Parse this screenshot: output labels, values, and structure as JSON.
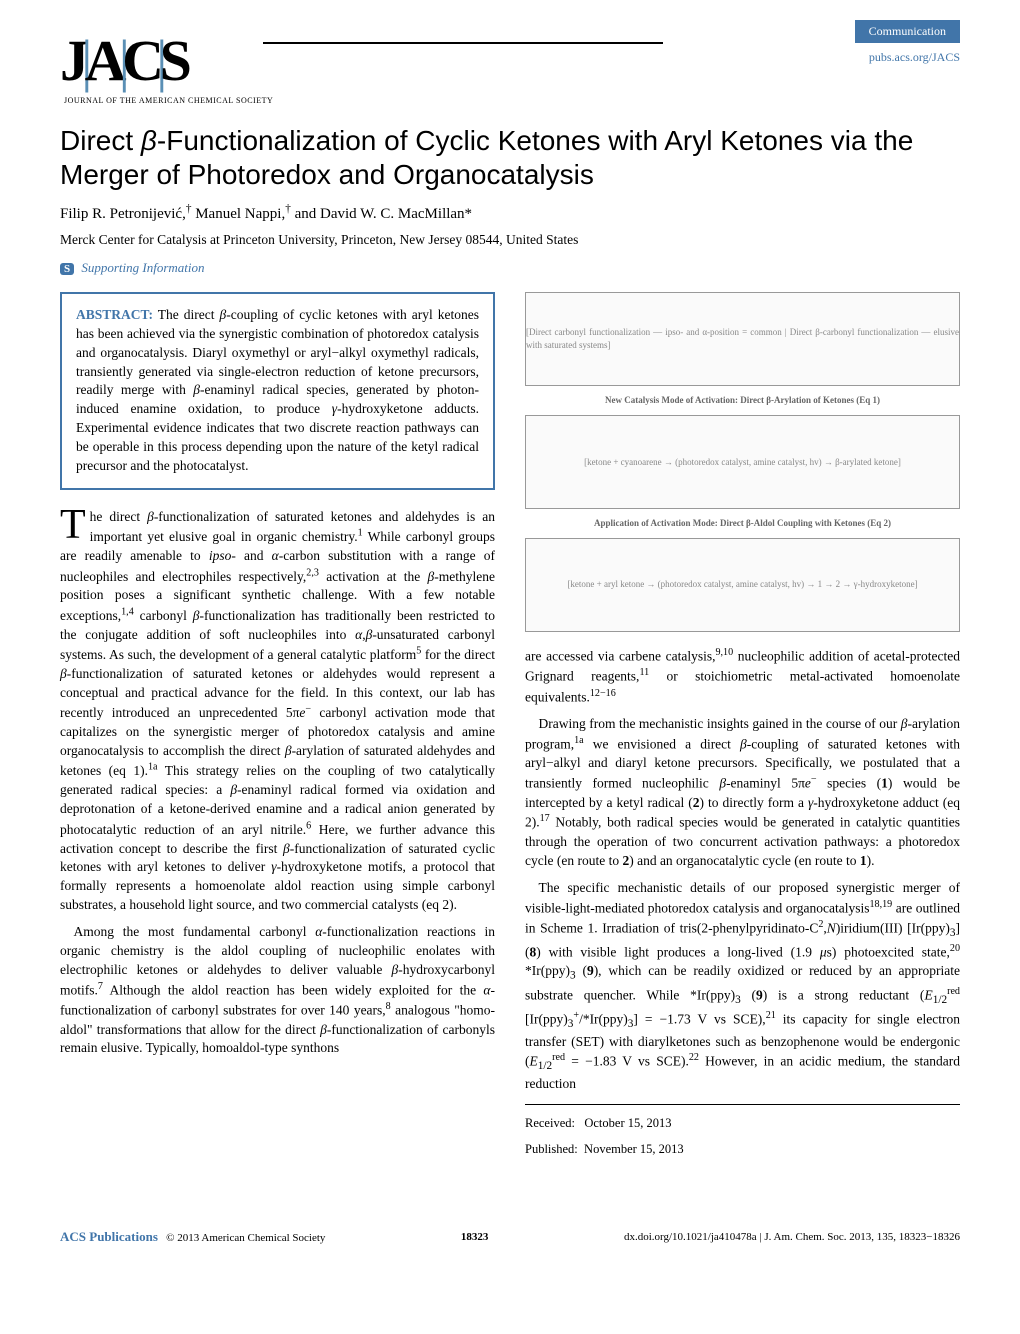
{
  "header": {
    "journal_initials": "JACS",
    "journal_subtitle": "JOURNAL OF THE AMERICAN CHEMICAL SOCIETY",
    "badge": "Communication",
    "pubs_link": "pubs.acs.org/JACS"
  },
  "title_html": "Direct <i>β</i>-Functionalization of Cyclic Ketones with Aryl Ketones via the Merger of Photoredox and Organocatalysis",
  "authors_html": "Filip R. Petronijević,<sup>†</sup> Manuel Nappi,<sup>†</sup> and David W. C. MacMillan*",
  "affiliation": "Merck Center for Catalysis at Princeton University, Princeton, New Jersey 08544, United States",
  "si_label": "Supporting Information",
  "abstract": {
    "label": "ABSTRACT:",
    "text_html": "The direct <i>β</i>-coupling of cyclic ketones with aryl ketones has been achieved via the synergistic combination of photoredox catalysis and organocatalysis. Diaryl oxymethyl or aryl−alkyl oxymethyl radicals, transiently generated via single-electron reduction of ketone precursors, readily merge with <i>β</i>-enaminyl radical species, generated by photon-induced enamine oxidation, to produce <i>γ</i>-hydroxyketone adducts. Experimental evidence indicates that two discrete reaction pathways can be operable in this process depending upon the nature of the ketyl radical precursor and the photocatalyst."
  },
  "body": {
    "left_p1_html": "he direct <i>β</i>-functionalization of saturated ketones and aldehydes is an important yet elusive goal in organic chemistry.<sup>1</sup> While carbonyl groups are readily amenable to <i>ipso</i>- and <i>α</i>-carbon substitution with a range of nucleophiles and electrophiles respectively,<sup>2,3</sup> activation at the <i>β</i>-methylene position poses a significant synthetic challenge. With a few notable exceptions,<sup>1,4</sup> carbonyl <i>β</i>-functionalization has traditionally been restricted to the conjugate addition of soft nucleophiles into <i>α</i>,<i>β</i>-unsaturated carbonyl systems. As such, the development of a general catalytic platform<sup>5</sup> for the direct <i>β</i>-functionalization of saturated ketones or aldehydes would represent a conceptual and practical advance for the field. In this context, our lab has recently introduced an unprecedented 5π<i>e</i><sup>−</sup> carbonyl activation mode that capitalizes on the synergistic merger of photoredox catalysis and amine organocatalysis to accomplish the direct <i>β</i>-arylation of saturated aldehydes and ketones (eq 1).<sup>1a</sup> This strategy relies on the coupling of two catalytically generated radical species: a <i>β</i>-enaminyl radical formed via oxidation and deprotonation of a ketone-derived enamine and a radical anion generated by photocatalytic reduction of an aryl nitrile.<sup>6</sup> Here, we further advance this activation concept to describe the first <i>β</i>-functionalization of saturated cyclic ketones with aryl ketones to deliver <i>γ</i>-hydroxyketone motifs, a protocol that formally represents a homoenolate aldol reaction using simple carbonyl substrates, a household light source, and two commercial catalysts (eq 2).",
    "left_p2_html": "Among the most fundamental carbonyl <i>α</i>-functionalization reactions in organic chemistry is the aldol coupling of nucleophilic enolates with electrophilic ketones or aldehydes to deliver valuable <i>β</i>-hydroxycarbonyl motifs.<sup>7</sup> Although the aldol reaction has been widely exploited for the <i>α</i>-functionalization of carbonyl substrates for over 140 years,<sup>8</sup> analogous \"homo-aldol\" transformations that allow for the direct <i>β</i>-functionalization of carbonyls remain elusive. Typically, homoaldol-type synthons",
    "right_p1_html": "are accessed via carbene catalysis,<sup>9,10</sup> nucleophilic addition of acetal-protected Grignard reagents,<sup>11</sup> or stoichiometric metal-activated homoenolate equivalents.<sup>12−16</sup>",
    "right_p2_html": "Drawing from the mechanistic insights gained in the course of our <i>β</i>-arylation program,<sup>1a</sup> we envisioned a direct <i>β</i>-coupling of saturated ketones with aryl−alkyl and diaryl ketone precursors. Specifically, we postulated that a transiently formed nucleophilic <i>β</i>-enaminyl 5π<i>e</i><sup>−</sup> species (<b>1</b>) would be intercepted by a ketyl radical (<b>2</b>) to directly form a <i>γ</i>-hydroxyketone adduct (eq 2).<sup>17</sup> Notably, both radical species would be generated in catalytic quantities through the operation of two concurrent activation pathways: a photoredox cycle (en route to <b>2</b>) and an organocatalytic cycle (en route to <b>1</b>).",
    "right_p3_html": "The specific mechanistic details of our proposed synergistic merger of visible-light-mediated photoredox catalysis and organocatalysis<sup>18,19</sup> are outlined in Scheme 1. Irradiation of tris(2-phenylpyridinato-C<sup>2</sup>,<i>N</i>)iridium(III) [Ir(ppy)<sub>3</sub>] (<b>8</b>) with visible light produces a long-lived (1.9 <i>μ</i>s) photoexcited state,<sup>20</sup> *Ir(ppy)<sub>3</sub> (<b>9</b>), which can be readily oxidized or reduced by an appropriate substrate quencher. While *Ir(ppy)<sub>3</sub> (<b>9</b>) is a strong reductant (<i>E</i><sub>1/2</sub><sup>red</sup> [Ir(ppy)<sub>3</sub><sup>+</sup>/*Ir(ppy)<sub>3</sub>] = −1.73 V vs SCE),<sup>21</sup> its capacity for single electron transfer (SET) with diarylketones such as benzophenone would be endergonic (<i>E</i><sub>1/2</sub><sup>red</sup> = −1.83 V vs SCE).<sup>22</sup> However, in an acidic medium, the standard reduction"
  },
  "scheme_captions": {
    "cap1": "New Catalysis Mode of Activation: Direct β-Arylation of Ketones (Eq 1)",
    "cap2": "Application of Activation Mode: Direct β-Aldol Coupling with Ketones (Eq 2)",
    "panel1_desc": "[Direct carbonyl functionalization — ipso- and α-position = common | Direct β-carbonyl functionalization — elusive with saturated systems]",
    "panel2_desc": "[ketone + cyanoarene → (photoredox catalyst, amine catalyst, hv) → β-arylated ketone]",
    "panel3_desc": "[ketone + aryl ketone → (photoredox catalyst, amine catalyst, hv) → 1 → 2 → γ-hydroxyketone]"
  },
  "dates": {
    "received_label": "Received:",
    "received": "October 15, 2013",
    "published_label": "Published:",
    "published": "November 15, 2013"
  },
  "footer": {
    "publisher": "ACS Publications",
    "copyright": "© 2013 American Chemical Society",
    "page": "18323",
    "doi_citation": "dx.doi.org/10.1021/ja410478a | J. Am. Chem. Soc. 2013, 135, 18323−18326"
  },
  "colors": {
    "brand_blue": "#4175a9",
    "logo_blue": "#5a8fb5",
    "text": "#000000",
    "bg": "#ffffff"
  }
}
